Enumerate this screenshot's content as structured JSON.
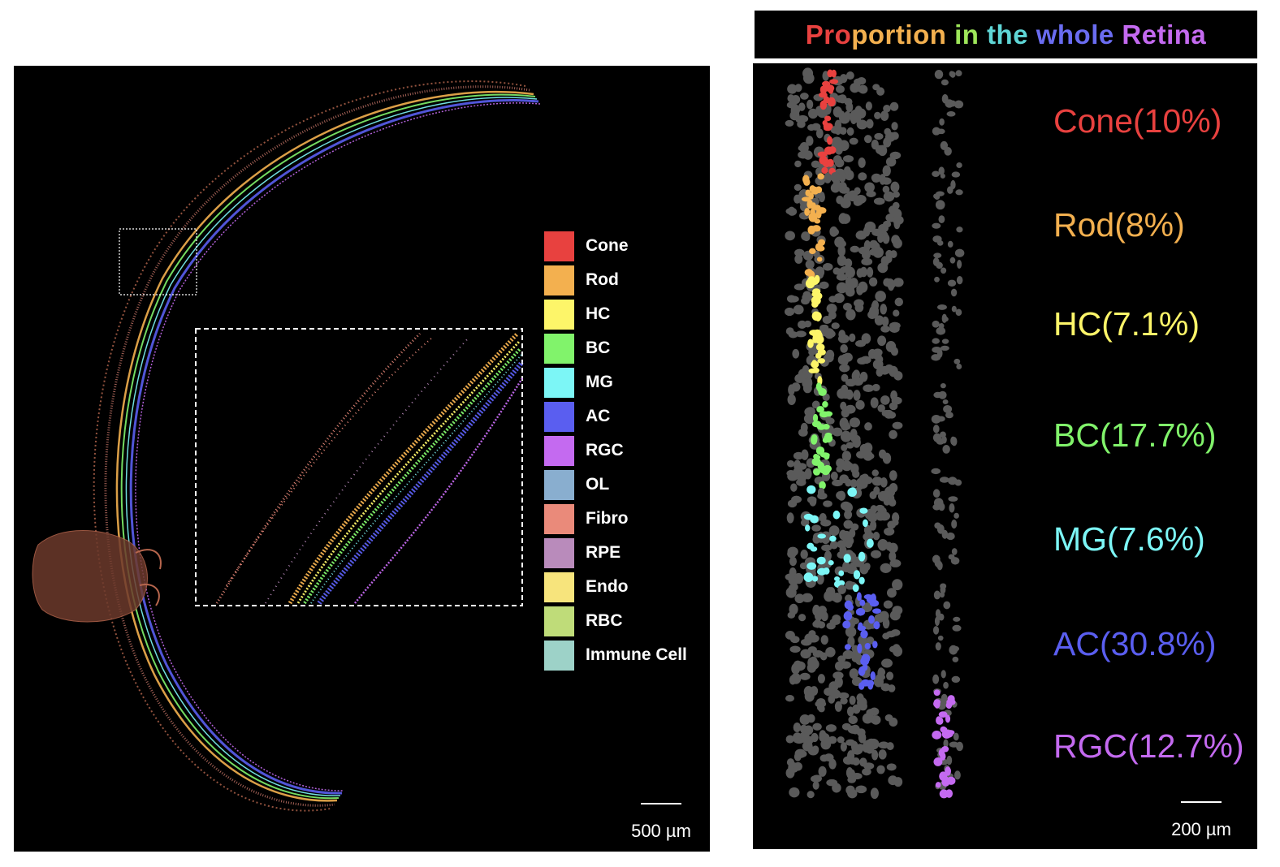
{
  "left_panel": {
    "legend": [
      {
        "label": "Cone",
        "color": "#e8413f"
      },
      {
        "label": "Rod",
        "color": "#f3b04f"
      },
      {
        "label": "HC",
        "color": "#fdf569"
      },
      {
        "label": "BC",
        "color": "#81f36b"
      },
      {
        "label": "MG",
        "color": "#7cf6f6"
      },
      {
        "label": "AC",
        "color": "#5a5ef0"
      },
      {
        "label": "RGC",
        "color": "#c46af0"
      },
      {
        "label": "OL",
        "color": "#89aecf"
      },
      {
        "label": "Fibro",
        "color": "#ea8a7a"
      },
      {
        "label": "RPE",
        "color": "#b98bbb"
      },
      {
        "label": "Endo",
        "color": "#f7e47c"
      },
      {
        "label": "RBC",
        "color": "#bfdc79"
      },
      {
        "label": "Immune Cell",
        "color": "#9dd2c8"
      }
    ],
    "scale_label": "500 µm"
  },
  "right_panel": {
    "title_words": [
      {
        "text": "Pro",
        "color": "#e8413f"
      },
      {
        "text": "por",
        "color": "#f3b04f"
      },
      {
        "text": "tion ",
        "color": "#f3b04f"
      },
      {
        "text": "in ",
        "color": "#9ee65a"
      },
      {
        "text": "the ",
        "color": "#5fd6d6"
      },
      {
        "text": "whole ",
        "color": "#6a6cf0"
      },
      {
        "text": "Retina",
        "color": "#c46af0"
      }
    ],
    "proportions": [
      {
        "label": "Cone(10%)",
        "color": "#e8413f",
        "value": 10
      },
      {
        "label": "Rod(8%)",
        "color": "#f3b04f",
        "value": 8
      },
      {
        "label": "HC(7.1%)",
        "color": "#fdf569",
        "value": 7.1
      },
      {
        "label": "BC(17.7%)",
        "color": "#81f36b",
        "value": 17.7
      },
      {
        "label": "MG(7.6%)",
        "color": "#7cf6f6",
        "value": 7.6
      },
      {
        "label": "AC(30.8%)",
        "color": "#5a5ef0",
        "value": 30.8
      },
      {
        "label": "RGC(12.7%)",
        "color": "#c46af0",
        "value": 12.7
      }
    ],
    "scale_label": "200 µm"
  }
}
